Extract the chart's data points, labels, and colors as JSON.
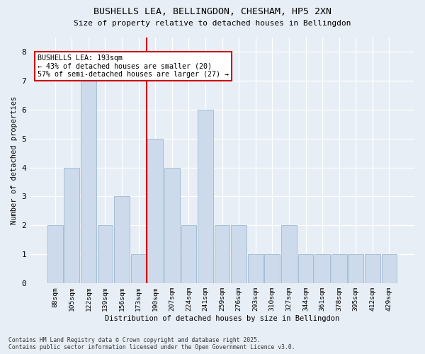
{
  "title1": "BUSHELLS LEA, BELLINGDON, CHESHAM, HP5 2XN",
  "title2": "Size of property relative to detached houses in Bellingdon",
  "xlabel": "Distribution of detached houses by size in Bellingdon",
  "ylabel": "Number of detached properties",
  "bin_labels": [
    "88sqm",
    "105sqm",
    "122sqm",
    "139sqm",
    "156sqm",
    "173sqm",
    "190sqm",
    "207sqm",
    "224sqm",
    "241sqm",
    "259sqm",
    "276sqm",
    "293sqm",
    "310sqm",
    "327sqm",
    "344sqm",
    "361sqm",
    "378sqm",
    "395sqm",
    "412sqm",
    "429sqm"
  ],
  "bar_heights": [
    2,
    4,
    7,
    2,
    3,
    1,
    5,
    4,
    2,
    6,
    2,
    2,
    1,
    1,
    2,
    1,
    1,
    1,
    1,
    1,
    1
  ],
  "bar_color": "#ccdaeb",
  "bar_edgecolor": "#9db8d2",
  "vline_x_idx": 5.5,
  "vline_color": "#cc0000",
  "annotation_title": "BUSHELLS LEA: 193sqm",
  "annotation_line1": "← 43% of detached houses are smaller (20)",
  "annotation_line2": "57% of semi-detached houses are larger (27) →",
  "annotation_box_color": "#cc0000",
  "ylim": [
    0,
    8.5
  ],
  "yticks": [
    0,
    1,
    2,
    3,
    4,
    5,
    6,
    7,
    8
  ],
  "footer1": "Contains HM Land Registry data © Crown copyright and database right 2025.",
  "footer2": "Contains public sector information licensed under the Open Government Licence v3.0.",
  "bg_color": "#e8eef5",
  "plot_bg_color": "#e8eef5"
}
